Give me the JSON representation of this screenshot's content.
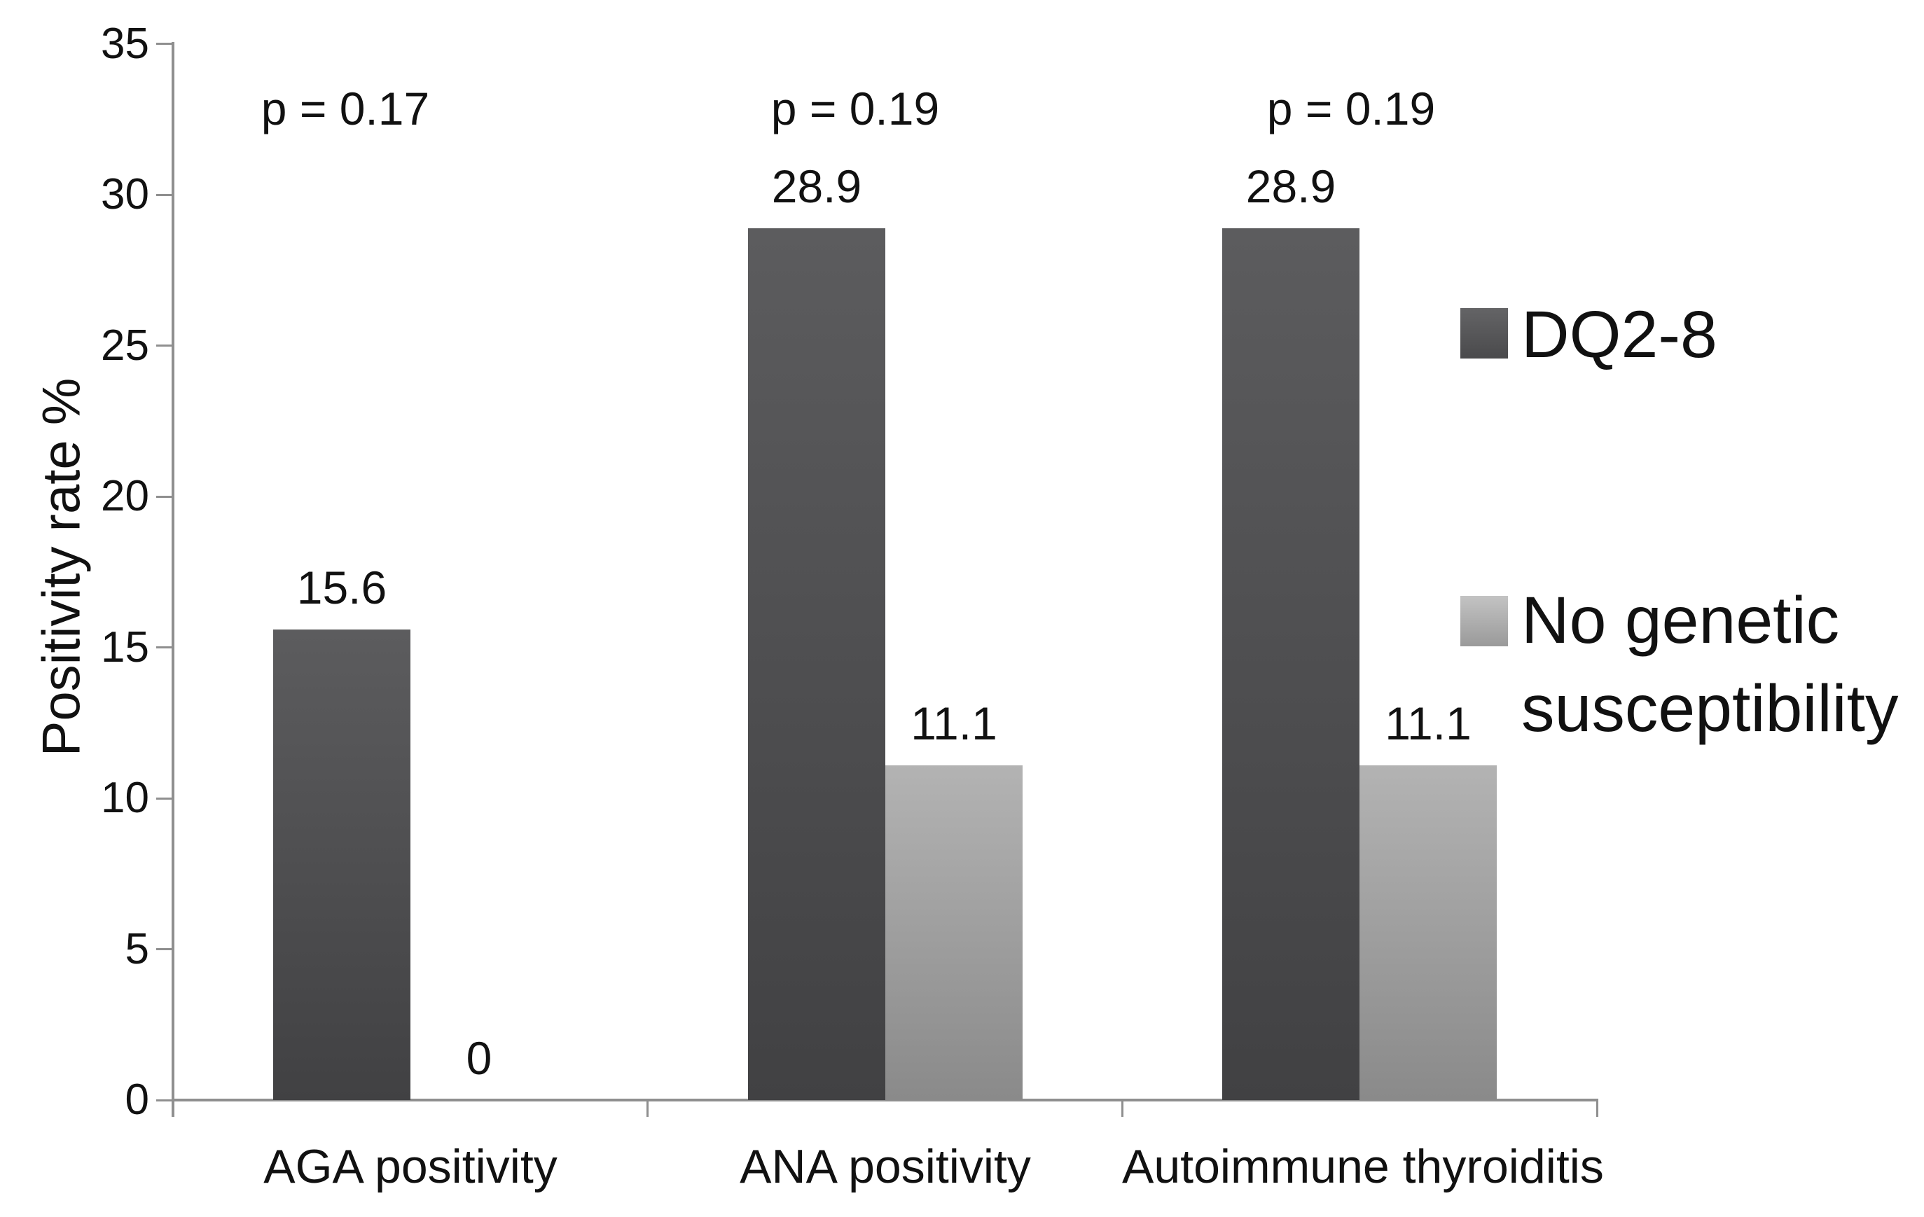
{
  "chart_data": {
    "type": "bar",
    "title": "",
    "ylabel": "Positivity rate %",
    "xlabel": "",
    "ylim": [
      0,
      35
    ],
    "yticks": [
      0,
      5,
      10,
      15,
      20,
      25,
      30,
      35
    ],
    "grid": false,
    "legend_position": "right",
    "axis_color": "#8f8f8f",
    "text_color": "#111111",
    "categories": [
      "AGA positivity",
      "ANA positivity",
      "Autoimmune thyroiditis"
    ],
    "series": [
      {
        "name": "DQ2-8",
        "values": [
          15.6,
          28.9,
          28.9
        ],
        "color_top": "#5c5c5e",
        "color_bottom": "#414143"
      },
      {
        "name": "No genetic susceptibility",
        "values": [
          0,
          11.1,
          11.1
        ],
        "color_top": "#b3b3b3",
        "color_bottom": "#8a8a8a"
      }
    ],
    "data_labels": [
      [
        "15.6",
        "28.9",
        "28.9"
      ],
      [
        "0",
        "11.1",
        "11.1"
      ]
    ],
    "p_values": [
      "p = 0.17",
      "p = 0.19",
      "p = 0.19"
    ]
  }
}
